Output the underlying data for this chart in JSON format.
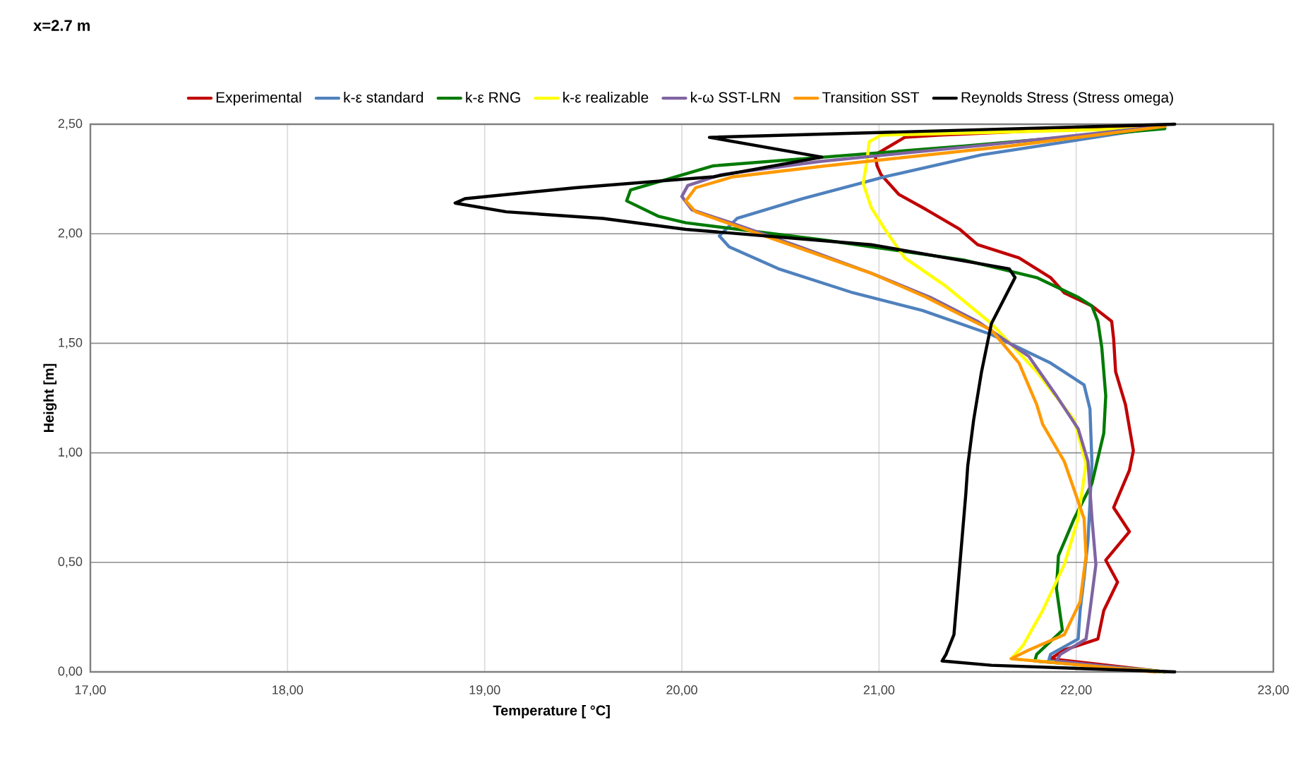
{
  "chart_data": {
    "type": "line",
    "title": "x=2.7 m",
    "xlabel": "Temperature [ °C]",
    "ylabel": "Height [m]",
    "xlim": [
      17,
      23
    ],
    "ylim": [
      0,
      2.5
    ],
    "xticks": [
      {
        "value": 17,
        "label": "17,00"
      },
      {
        "value": 18,
        "label": "18,00"
      },
      {
        "value": 19,
        "label": "19,00"
      },
      {
        "value": 20,
        "label": "20,00"
      },
      {
        "value": 21,
        "label": "21,00"
      },
      {
        "value": 22,
        "label": "22,00"
      },
      {
        "value": 23,
        "label": "23,00"
      }
    ],
    "yticks": [
      {
        "value": 0,
        "label": "0,00"
      },
      {
        "value": 0.5,
        "label": "0,50"
      },
      {
        "value": 1,
        "label": "1,00"
      },
      {
        "value": 1.5,
        "label": "1,50"
      },
      {
        "value": 2,
        "label": "2,00"
      },
      {
        "value": 2.5,
        "label": "2,50"
      }
    ],
    "grid": true,
    "legend": "top",
    "marker": "none",
    "line_style": "solid",
    "series": [
      {
        "name": "Experimental",
        "color": "#c00000",
        "x": [
          22.45,
          21.8,
          21.3,
          21.13,
          20.98,
          20.99,
          21.01,
          21.1,
          21.24,
          21.41,
          21.5,
          21.71,
          21.87,
          21.94,
          22.08,
          22.18,
          22.19,
          22.2,
          22.25,
          22.29,
          22.27,
          22.19,
          22.27,
          22.15,
          22.21,
          22.14,
          22.11,
          21.94,
          21.87,
          22.45
        ],
        "values": [
          2.49,
          2.47,
          2.45,
          2.44,
          2.36,
          2.31,
          2.27,
          2.18,
          2.11,
          2.02,
          1.95,
          1.89,
          1.8,
          1.73,
          1.67,
          1.6,
          1.52,
          1.37,
          1.22,
          1.01,
          0.92,
          0.75,
          0.64,
          0.51,
          0.41,
          0.28,
          0.15,
          0.1,
          0.06,
          0.0
        ]
      },
      {
        "name": "k-ε standard",
        "color": "#4f81bd",
        "x": [
          22.38,
          21.52,
          21.03,
          20.61,
          20.28,
          20.19,
          20.24,
          20.49,
          20.87,
          21.22,
          21.57,
          21.87,
          22.04,
          22.07,
          22.08,
          22.06,
          22.04,
          22.02,
          22.01,
          21.87,
          21.86,
          22.45
        ],
        "values": [
          2.48,
          2.36,
          2.26,
          2.16,
          2.07,
          1.99,
          1.94,
          1.84,
          1.73,
          1.65,
          1.54,
          1.41,
          1.31,
          1.2,
          0.95,
          0.6,
          0.43,
          0.28,
          0.15,
          0.08,
          0.05,
          0.0
        ]
      },
      {
        "name": "k-ε RNG",
        "color": "#007a00",
        "x": [
          22.45,
          21.43,
          20.16,
          19.74,
          19.72,
          19.88,
          20.02,
          20.73,
          21.43,
          21.8,
          22.01,
          22.08,
          22.11,
          22.13,
          22.15,
          22.14,
          22.08,
          21.99,
          21.91,
          21.9,
          21.93,
          21.8,
          21.79,
          22.45
        ],
        "values": [
          2.48,
          2.4,
          2.31,
          2.2,
          2.15,
          2.08,
          2.05,
          1.97,
          1.88,
          1.8,
          1.71,
          1.67,
          1.6,
          1.48,
          1.26,
          1.09,
          0.86,
          0.7,
          0.53,
          0.38,
          0.19,
          0.08,
          0.05,
          0.0
        ]
      },
      {
        "name": "k-ε realizable",
        "color": "#ffff00",
        "x": [
          22.32,
          21.01,
          20.95,
          20.94,
          20.92,
          20.96,
          21.03,
          21.13,
          21.34,
          21.57,
          21.8,
          21.99,
          22.05,
          22.01,
          21.94,
          21.83,
          21.73,
          21.67,
          22.45
        ],
        "values": [
          2.48,
          2.45,
          2.42,
          2.34,
          2.23,
          2.12,
          2.02,
          1.89,
          1.76,
          1.59,
          1.37,
          1.15,
          0.95,
          0.7,
          0.49,
          0.28,
          0.12,
          0.06,
          0.0
        ]
      },
      {
        "name": "k-ω SST-LRN",
        "color": "#8064a2",
        "x": [
          22.42,
          21.6,
          20.7,
          20.2,
          20.03,
          20.0,
          20.05,
          20.25,
          20.6,
          20.96,
          21.26,
          21.5,
          21.76,
          21.9,
          22.01,
          22.06,
          22.08,
          22.1,
          22.07,
          22.05,
          21.92,
          21.9,
          22.4
        ],
        "values": [
          2.49,
          2.41,
          2.33,
          2.27,
          2.22,
          2.17,
          2.11,
          2.05,
          1.94,
          1.82,
          1.71,
          1.6,
          1.44,
          1.26,
          1.11,
          0.96,
          0.7,
          0.49,
          0.28,
          0.15,
          0.08,
          0.05,
          0.0
        ]
      },
      {
        "name": "Transition SST",
        "color": "#ff9900",
        "x": [
          22.45,
          21.66,
          20.73,
          20.26,
          20.07,
          20.02,
          20.07,
          20.26,
          20.61,
          20.96,
          21.24,
          21.48,
          21.57,
          21.71,
          21.8,
          21.83,
          21.94,
          22.04,
          22.05,
          22.02,
          21.94,
          21.76,
          21.67,
          22.4
        ],
        "values": [
          2.49,
          2.4,
          2.31,
          2.26,
          2.21,
          2.15,
          2.1,
          2.04,
          1.93,
          1.82,
          1.71,
          1.6,
          1.56,
          1.41,
          1.22,
          1.13,
          0.96,
          0.7,
          0.53,
          0.32,
          0.17,
          0.1,
          0.06,
          0.0
        ]
      },
      {
        "name": "Reynolds Stress (Stress omega)",
        "color": "#000000",
        "x": [
          22.5,
          20.14,
          20.71,
          20.16,
          19.46,
          18.9,
          18.85,
          19.11,
          19.6,
          20.02,
          20.96,
          21.66,
          21.69,
          21.65,
          21.57,
          21.52,
          21.48,
          21.45,
          21.44,
          21.41,
          21.38,
          21.34,
          21.32,
          21.57,
          22.5
        ],
        "values": [
          2.5,
          2.44,
          2.35,
          2.26,
          2.21,
          2.16,
          2.14,
          2.1,
          2.07,
          2.02,
          1.95,
          1.84,
          1.8,
          1.73,
          1.59,
          1.37,
          1.15,
          0.94,
          0.81,
          0.49,
          0.17,
          0.08,
          0.05,
          0.03,
          0.0
        ]
      }
    ]
  }
}
